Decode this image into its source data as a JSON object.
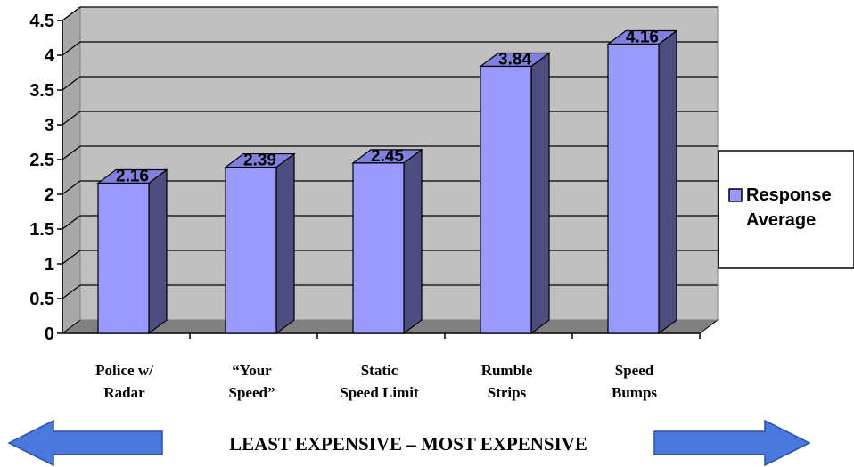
{
  "chart_data": {
    "type": "bar",
    "categories": [
      [
        "Police w/",
        "Radar"
      ],
      [
        "“Your",
        "Speed”"
      ],
      [
        "Static",
        "Speed Limit"
      ],
      [
        "Rumble",
        "Strips"
      ],
      [
        "Speed",
        "Bumps"
      ]
    ],
    "series": [
      {
        "name": "Response Average",
        "values": [
          2.16,
          2.39,
          2.45,
          3.84,
          4.16
        ]
      }
    ],
    "data_labels": [
      "2.16",
      "2.39",
      "2.45",
      "3.84",
      "4.16"
    ],
    "y_ticks": [
      "0",
      "0.5",
      "1",
      "1.5",
      "2",
      "2.5",
      "3",
      "3.5",
      "4",
      "4.5"
    ],
    "ylim": [
      0,
      4.5
    ],
    "grid": true,
    "legend": {
      "position": "right",
      "lines": [
        "Response",
        "Average"
      ]
    },
    "colors": {
      "bar_front": "#9999ff",
      "bar_side": "#4d4d80",
      "bar_top": "#8080dd",
      "wall": "#c0c0c0",
      "floor": "#808080"
    }
  },
  "footer": {
    "text": "LEAST EXPENSIVE – MOST EXPENSIVE",
    "arrow_color": "#4a78dc"
  }
}
